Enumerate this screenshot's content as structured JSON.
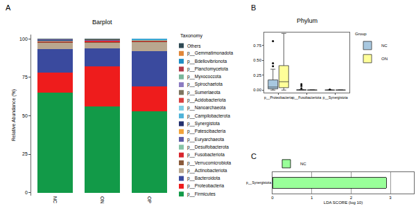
{
  "chart_data": [
    {
      "type": "bar",
      "panel": "A",
      "title": "Barplot",
      "stacked": true,
      "grid": false,
      "ylabel": "Relative Abundance (%)",
      "legend": "right",
      "legend_title": "Taxonomy",
      "categories": [
        "NC",
        "ON",
        "OP"
      ],
      "ylim": [
        -2,
        103
      ],
      "yticks": [
        0,
        25,
        50,
        75,
        100
      ],
      "series": [
        {
          "name": "p__Firmicutes",
          "color": "#129a48",
          "values": [
            65,
            56,
            53
          ]
        },
        {
          "name": "p__Proteobacteria",
          "color": "#ee1c1c",
          "values": [
            13,
            26,
            16
          ]
        },
        {
          "name": "p__Bacteroidota",
          "color": "#3a4a9e",
          "values": [
            15.5,
            12,
            23
          ]
        },
        {
          "name": "p__Actinobacteriota",
          "color": "#b9a78f",
          "values": [
            4.2,
            3.6,
            6
          ]
        },
        {
          "name": "p__Verrucomicrobiota",
          "color": "#8a5a3a",
          "values": [
            0.3,
            0.3,
            0.5
          ]
        },
        {
          "name": "p__Fusobacteriota",
          "color": "#d9262e",
          "values": [
            0.4,
            0.9,
            0.3
          ]
        },
        {
          "name": "p__Desulfobacterota",
          "color": "#86c4a6",
          "values": [
            0.3,
            0.2,
            0.3
          ]
        },
        {
          "name": "p__Euryarchaeota",
          "color": "#5c5ca6",
          "values": [
            0.2,
            0.1,
            0.2
          ]
        },
        {
          "name": "p__Patescibacteria",
          "color": "#f2a33a",
          "values": [
            0.1,
            0.1,
            0.1
          ]
        },
        {
          "name": "p__Synergistota",
          "color": "#23306e",
          "values": [
            0.2,
            0.05,
            0.05
          ]
        },
        {
          "name": "p__Campilobacterota",
          "color": "#4fb3d9",
          "values": [
            0.1,
            0.1,
            0.1
          ]
        },
        {
          "name": "p__Nanoarchaeota",
          "color": "#7fd0e6",
          "values": [
            0.05,
            0.05,
            0.05
          ]
        },
        {
          "name": "p__Acidobacteriota",
          "color": "#d94040",
          "values": [
            0.1,
            0.1,
            0.1
          ]
        },
        {
          "name": "p__Sumerlaeota",
          "color": "#7d7560",
          "values": [
            0.05,
            0.05,
            0.05
          ]
        },
        {
          "name": "p__Spirochaetota",
          "color": "#8c7cc2",
          "values": [
            0.1,
            0.1,
            0.1
          ]
        },
        {
          "name": "p__Myxococcota",
          "color": "#7ab79b",
          "values": [
            0.05,
            0.05,
            0.05
          ]
        },
        {
          "name": "p__Planctomycetota",
          "color": "#b23a4a",
          "values": [
            0.05,
            0.05,
            0.05
          ]
        },
        {
          "name": "p__Bdellovibrionota",
          "color": "#1f8fc6",
          "values": [
            0.05,
            0.05,
            0.05
          ]
        },
        {
          "name": "p__Gemmatimonadota",
          "color": "#e0873a",
          "values": [
            0.05,
            0.05,
            0.05
          ]
        },
        {
          "name": "Others",
          "color": "#2f4a54",
          "values": [
            0.2,
            0.2,
            0.2
          ]
        }
      ]
    },
    {
      "type": "box",
      "panel": "B",
      "title": "Phylum",
      "grid": false,
      "legend": "right",
      "legend_title": "Group",
      "categories": [
        "p__Proteobacteria",
        "p__Fusobacteriota",
        "p__Synergistota"
      ],
      "ylim": [
        -0.04,
        0.97
      ],
      "yticks": [
        {
          "value": 0,
          "label": "0.00"
        },
        {
          "value": 0.25,
          "label": "0.25"
        },
        {
          "value": 0.5,
          "label": "0.50"
        },
        {
          "value": 0.75,
          "label": "0.75"
        }
      ],
      "series": [
        {
          "name": "NC",
          "color": "#a8c8e0",
          "q1": [
            0.02,
            0,
            0
          ],
          "median": [
            0.05,
            0,
            0
          ],
          "q3": [
            0.17,
            0.005,
            0.001
          ],
          "lowerfence": [
            0,
            0,
            0
          ],
          "upperfence": [
            0.35,
            0.01,
            0.002
          ],
          "outliers": [
            [
              0.82,
              0.45,
              0.4
            ],
            [
              0.1,
              0.07,
              0.03
            ],
            [
              0.01
            ]
          ]
        },
        {
          "name": "ON",
          "color": "#ffff99",
          "q1": [
            0.04,
            0,
            0
          ],
          "median": [
            0.14,
            0,
            0
          ],
          "q3": [
            0.41,
            0.002,
            0.001
          ],
          "lowerfence": [
            0,
            0,
            0
          ],
          "upperfence": [
            0.95,
            0.004,
            0.002
          ],
          "outliers": [
            [],
            [],
            []
          ]
        }
      ]
    },
    {
      "type": "bar",
      "panel": "C",
      "orientation": "horizontal",
      "grid": true,
      "legend": "top-left",
      "xlabel": "LDA SCORE (log 10)",
      "categories": [
        "p__Synergistota"
      ],
      "xlim": [
        0,
        3.6
      ],
      "xticks": [
        0,
        1,
        2,
        3
      ],
      "series": [
        {
          "name": "NC",
          "color": "#99ff99",
          "values": [
            2.9
          ]
        }
      ]
    }
  ]
}
